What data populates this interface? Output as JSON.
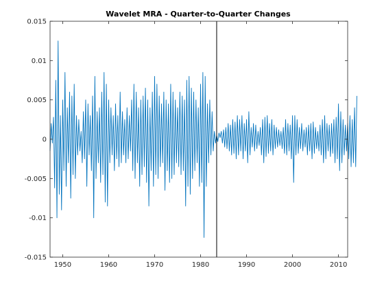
{
  "chart_data": {
    "type": "line",
    "title": "Wavelet MRA - Quarter-to-Quarter Changes",
    "xlabel": "",
    "ylabel": "",
    "xlim": [
      1947.25,
      2012.0
    ],
    "ylim": [
      -0.015,
      0.015
    ],
    "x_ticks": [
      1950,
      1960,
      1970,
      1980,
      1990,
      2000,
      2010
    ],
    "x_tick_labels": [
      "1950",
      "1960",
      "1970",
      "1980",
      "1990",
      "2000",
      "2010"
    ],
    "y_ticks": [
      -0.015,
      -0.01,
      -0.005,
      0,
      0.005,
      0.01,
      0.015
    ],
    "y_tick_labels": [
      "-0.015",
      "-0.01",
      "-0.005",
      "0",
      "0.005",
      "0.01",
      "0.015"
    ],
    "vertical_line_x": 1983.5,
    "line_color": "#0072bd",
    "grid": false,
    "series": [
      {
        "x_start": 1947.25,
        "x_step": 0.25,
        "values": [
          -0.0015,
          0.002,
          -0.0005,
          0.0028,
          -0.0062,
          0.0075,
          -0.01,
          0.0125,
          -0.007,
          0.003,
          -0.009,
          0.005,
          -0.004,
          0.0085,
          -0.006,
          0.004,
          -0.003,
          0.006,
          -0.0075,
          0.0055,
          -0.0045,
          0.007,
          -0.005,
          0.003,
          -0.002,
          0.0025,
          -0.0015,
          0.001,
          -0.003,
          0.0035,
          -0.0025,
          0.005,
          -0.006,
          0.0045,
          -0.002,
          0.003,
          -0.004,
          0.0055,
          -0.01,
          0.008,
          -0.005,
          0.0035,
          -0.003,
          0.004,
          -0.0055,
          0.006,
          -0.0045,
          0.0085,
          -0.008,
          0.007,
          -0.0085,
          0.005,
          -0.003,
          0.004,
          -0.002,
          0.003,
          -0.004,
          0.0045,
          -0.0025,
          0.003,
          -0.0035,
          0.006,
          -0.003,
          0.0035,
          -0.002,
          0.0025,
          -0.003,
          0.004,
          -0.0025,
          0.003,
          -0.0015,
          0.005,
          -0.004,
          0.007,
          -0.005,
          0.006,
          -0.003,
          0.004,
          -0.006,
          0.005,
          -0.0045,
          0.0055,
          -0.0035,
          0.0065,
          -0.0055,
          0.005,
          -0.0085,
          0.004,
          -0.004,
          0.006,
          -0.006,
          0.008,
          -0.0045,
          0.007,
          -0.005,
          0.0055,
          -0.0035,
          0.0045,
          -0.003,
          0.006,
          -0.0065,
          0.005,
          -0.004,
          0.0045,
          -0.0055,
          0.007,
          -0.005,
          0.006,
          -0.0045,
          0.005,
          -0.003,
          0.004,
          -0.0035,
          0.006,
          -0.0045,
          0.0055,
          -0.004,
          0.005,
          -0.0085,
          0.0075,
          -0.006,
          0.008,
          -0.007,
          0.0065,
          -0.005,
          0.006,
          -0.004,
          0.005,
          -0.003,
          0.004,
          -0.006,
          0.007,
          -0.0055,
          0.0085,
          -0.0125,
          0.008,
          -0.006,
          0.0045,
          -0.003,
          0.005,
          -0.002,
          0.0035,
          -0.0015,
          0.001,
          -0.0005,
          0.0005,
          -0.0003,
          0.0008,
          0.0002,
          0.001,
          -0.0005,
          0.0012,
          -0.001,
          0.0015,
          -0.0012,
          0.002,
          -0.0015,
          0.0018,
          -0.002,
          0.0025,
          -0.0018,
          0.0022,
          -0.0025,
          0.003,
          -0.002,
          0.0025,
          -0.0015,
          0.003,
          -0.0025,
          0.002,
          -0.0015,
          0.0025,
          -0.003,
          0.0035,
          -0.002,
          0.0015,
          -0.001,
          0.002,
          -0.0015,
          0.0018,
          -0.0012,
          0.001,
          -0.0008,
          0.0015,
          -0.002,
          0.0025,
          -0.003,
          0.0028,
          -0.0022,
          0.003,
          -0.0018,
          0.002,
          -0.0015,
          0.0025,
          -0.002,
          0.0018,
          -0.0012,
          0.0015,
          -0.001,
          0.0012,
          -0.0008,
          0.001,
          -0.0012,
          0.0015,
          -0.0018,
          0.0025,
          -0.002,
          0.002,
          -0.0015,
          0.0018,
          -0.0025,
          0.003,
          -0.0055,
          0.003,
          -0.002,
          0.0025,
          -0.0018,
          0.0015,
          -0.0012,
          0.002,
          -0.0015,
          0.0012,
          -0.001,
          0.0015,
          -0.002,
          0.0018,
          -0.0015,
          0.002,
          -0.0025,
          0.0022,
          -0.0018,
          0.0015,
          -0.0012,
          0.001,
          -0.0015,
          0.0018,
          -0.002,
          0.0025,
          -0.003,
          0.003,
          -0.0025,
          0.002,
          -0.0015,
          0.0018,
          -0.0022,
          0.002,
          -0.0018,
          0.0025,
          -0.003,
          0.0028,
          -0.0025,
          0.0045,
          -0.004,
          0.0035,
          -0.003,
          0.0025,
          -0.002,
          0.0018,
          -0.0015,
          0.002,
          -0.0025,
          0.003,
          -0.0035,
          0.0025,
          -0.003,
          0.004,
          -0.0035,
          0.0055
        ]
      }
    ]
  }
}
